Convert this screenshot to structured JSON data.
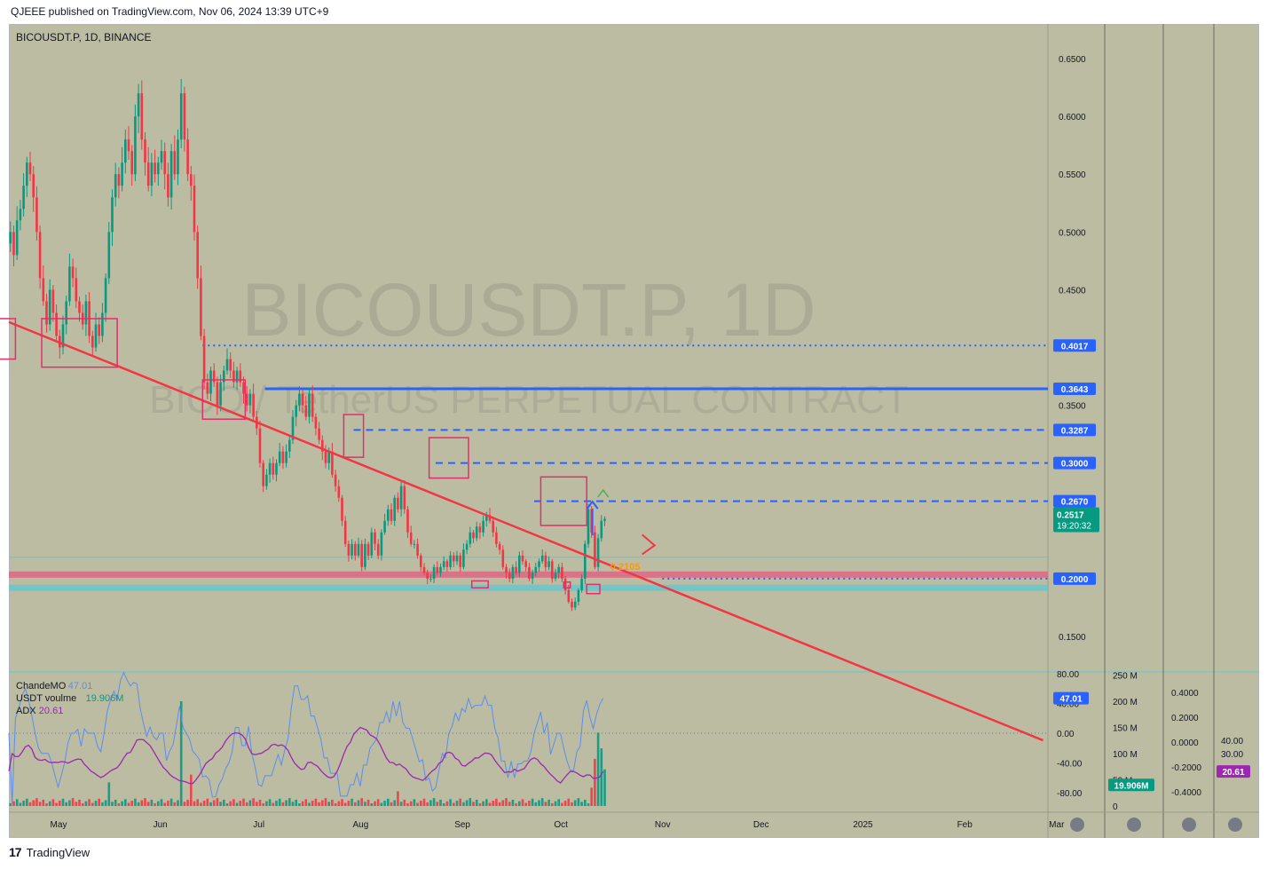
{
  "header": {
    "published": "QJEEE published on TradingView.com, Nov 06, 2024 13:39 UTC+9"
  },
  "footer": {
    "brand": "TradingView",
    "logo_text": "17"
  },
  "colors": {
    "background": "#bcbca3",
    "up": "#089981",
    "down": "#f23645",
    "trendline": "#f23645",
    "level": "#2962ff",
    "pink_zone": "#e06080",
    "teal_zone": "#5fc8d0",
    "cmo": "#5b8def",
    "adx": "#9c27b0",
    "badge_blue": "#2962ff",
    "badge_teal": "#089981",
    "badge_adx": "#9c27b0",
    "watermark": "#9a9a8a"
  },
  "chart_data": {
    "type": "candlestick",
    "symbol": "BICOUSDT.P, 1D, BINANCE",
    "watermark_symbol": "BICOUSDT.P, 1D",
    "watermark_desc": "BICO / TetherUS PERPETUAL CONTRACT",
    "price_ticks": [
      "0.6500",
      "0.6000",
      "0.5500",
      "0.5000",
      "0.4500",
      "0.3500",
      "0.1500"
    ],
    "price_tick_values": [
      0.65,
      0.6,
      0.55,
      0.5,
      0.45,
      0.35,
      0.15
    ],
    "x_ticks": [
      "May",
      "Jun",
      "Jul",
      "Aug",
      "Sep",
      "Oct",
      "Nov",
      "Dec",
      "2025",
      "Feb",
      "Mar"
    ],
    "x_tick_days": [
      0,
      31,
      61,
      92,
      123,
      153,
      184,
      214,
      245,
      276,
      304
    ],
    "date_start": "2024-04-13",
    "ylim": [
      0.12,
      0.68
    ],
    "levels": [
      {
        "label": "0.4017",
        "value": 0.4017,
        "style": "dotted",
        "start_day": 59
      },
      {
        "label": "0.3643",
        "value": 0.3643,
        "style": "solid",
        "start_day": 78
      },
      {
        "label": "0.3287",
        "value": 0.3287,
        "style": "dashed",
        "start_day": 105
      },
      {
        "label": "0.3000",
        "value": 0.3,
        "style": "dashed",
        "start_day": 130
      },
      {
        "label": "0.2670",
        "value": 0.267,
        "style": "dashed",
        "start_day": 160
      },
      {
        "label": "0.2000",
        "value": 0.2,
        "style": "dotted",
        "start_day": 199
      }
    ],
    "current_price": {
      "label": "0.2517",
      "timer": "19:20:32",
      "value": 0.2517
    },
    "annotation_text": "0.2105",
    "trendline": {
      "day1": 0,
      "price1": 0.422,
      "day2": 208,
      "price2": 0.183
    },
    "zones": [
      {
        "price": 0.2035,
        "color": "pink"
      },
      {
        "price": 0.192,
        "color": "teal"
      }
    ],
    "marker_boxes": [
      {
        "d1": -3,
        "d2": 2,
        "p1": 0.425,
        "p2": 0.39
      },
      {
        "d1": 10,
        "d2": 33,
        "p1": 0.425,
        "p2": 0.383
      },
      {
        "d1": 59,
        "d2": 72,
        "p1": 0.372,
        "p2": 0.338
      },
      {
        "d1": 102,
        "d2": 108,
        "p1": 0.342,
        "p2": 0.305
      },
      {
        "d1": 128,
        "d2": 140,
        "p1": 0.322,
        "p2": 0.287
      },
      {
        "d1": 162,
        "d2": 176,
        "p1": 0.288,
        "p2": 0.246
      },
      {
        "d1": 141,
        "d2": 146,
        "p1": 0.198,
        "p2": 0.192
      },
      {
        "d1": 169,
        "d2": 171,
        "p1": 0.197,
        "p2": 0.192
      },
      {
        "d1": 176,
        "d2": 180,
        "p1": 0.195,
        "p2": 0.187
      }
    ],
    "closes": [
      0.5,
      0.48,
      0.51,
      0.52,
      0.54,
      0.56,
      0.55,
      0.53,
      0.5,
      0.46,
      0.44,
      0.42,
      0.45,
      0.43,
      0.41,
      0.4,
      0.42,
      0.44,
      0.47,
      0.46,
      0.44,
      0.43,
      0.42,
      0.44,
      0.41,
      0.4,
      0.42,
      0.41,
      0.43,
      0.46,
      0.5,
      0.53,
      0.55,
      0.54,
      0.56,
      0.58,
      0.57,
      0.55,
      0.6,
      0.62,
      0.58,
      0.56,
      0.54,
      0.56,
      0.55,
      0.56,
      0.57,
      0.55,
      0.53,
      0.57,
      0.55,
      0.58,
      0.62,
      0.58,
      0.55,
      0.54,
      0.5,
      0.46,
      0.41,
      0.37,
      0.36,
      0.38,
      0.37,
      0.35,
      0.37,
      0.38,
      0.39,
      0.38,
      0.37,
      0.38,
      0.37,
      0.36,
      0.35,
      0.36,
      0.34,
      0.33,
      0.3,
      0.28,
      0.29,
      0.3,
      0.29,
      0.3,
      0.31,
      0.3,
      0.31,
      0.32,
      0.34,
      0.35,
      0.36,
      0.35,
      0.34,
      0.36,
      0.34,
      0.33,
      0.32,
      0.31,
      0.3,
      0.31,
      0.29,
      0.28,
      0.27,
      0.25,
      0.23,
      0.22,
      0.23,
      0.22,
      0.23,
      0.21,
      0.23,
      0.22,
      0.24,
      0.23,
      0.22,
      0.24,
      0.25,
      0.26,
      0.25,
      0.27,
      0.26,
      0.28,
      0.26,
      0.24,
      0.23,
      0.23,
      0.22,
      0.21,
      0.205,
      0.2,
      0.2,
      0.21,
      0.205,
      0.21,
      0.215,
      0.21,
      0.22,
      0.215,
      0.22,
      0.21,
      0.225,
      0.23,
      0.24,
      0.235,
      0.245,
      0.24,
      0.25,
      0.255,
      0.25,
      0.24,
      0.23,
      0.225,
      0.21,
      0.205,
      0.2,
      0.21,
      0.205,
      0.22,
      0.215,
      0.21,
      0.2,
      0.205,
      0.21,
      0.215,
      0.22,
      0.21,
      0.215,
      0.2,
      0.205,
      0.21,
      0.2,
      0.19,
      0.18,
      0.175,
      0.18,
      0.19,
      0.2,
      0.23,
      0.26,
      0.24,
      0.21,
      0.235,
      0.25,
      0.2517
    ],
    "indicators": {
      "legend": [
        {
          "name": "ChandeMO",
          "value": "47.01"
        },
        {
          "name": "USDT voulme",
          "value": "19.906M"
        },
        {
          "name": "ADX",
          "value": "20.61"
        }
      ],
      "cmo_ticks": [
        "80.00",
        "40.00",
        "0.00",
        "-40.00",
        "-80.00"
      ],
      "cmo_tick_values": [
        80,
        40,
        0,
        -40,
        -80
      ],
      "volume_ticks": [
        "250 M",
        "200 M",
        "150 M",
        "100 M",
        "50 M",
        "0"
      ],
      "volume_tick_values": [
        250,
        200,
        150,
        100,
        50,
        0
      ],
      "third_ticks": [
        "0.4000",
        "0.2000",
        "0.0000",
        "-0.2000",
        "-0.4000"
      ],
      "third_tick_values": [
        0.4,
        0.2,
        0.0,
        -0.2,
        -0.4
      ],
      "adx_ticks": [
        "40.00",
        "30.00"
      ],
      "adx_tick_values": [
        40,
        30
      ],
      "cmo_badge": "47.01",
      "volume_badge": "19.906M",
      "adx_badge": "20.61",
      "cmo_last": 47.01,
      "adx_last": 20.61,
      "volume_last_m": 19.906
    }
  }
}
